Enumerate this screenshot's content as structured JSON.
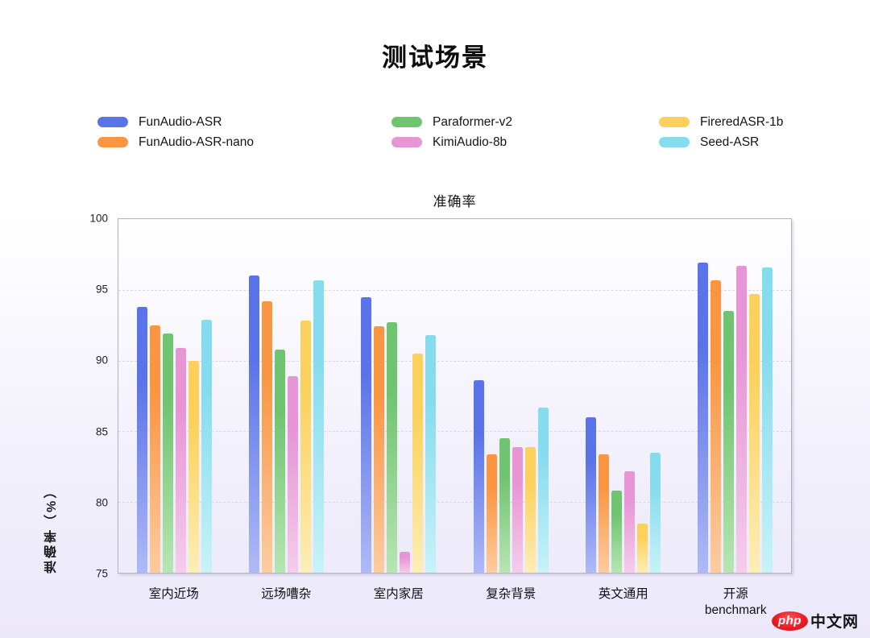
{
  "page": {
    "watermark": {
      "logo_text": "php",
      "site_text": "中文网"
    }
  },
  "chart_data": {
    "type": "bar",
    "title": "测试场景",
    "subtitle": "准确率",
    "xlabel": "",
    "ylabel": "准确率（%）",
    "ylim": [
      75,
      100
    ],
    "yticks": [
      75,
      80,
      85,
      90,
      95,
      100
    ],
    "grid": "horizontal-dashed",
    "legend_position": "top",
    "categories": [
      "室内近场",
      "远场嘈杂",
      "室内家居",
      "复杂背景",
      "英文通用",
      "开源\nbenchmark"
    ],
    "series": [
      {
        "name": "FunAudio-ASR",
        "color": "#5B73E8",
        "color_light": "#AFBAF6",
        "values": [
          93.8,
          96.0,
          94.5,
          88.6,
          86.0,
          96.9
        ]
      },
      {
        "name": "FunAudio-ASR-nano",
        "color": "#FA9642",
        "color_light": "#FCCCA0",
        "values": [
          92.5,
          94.2,
          92.4,
          83.4,
          83.4,
          95.7
        ]
      },
      {
        "name": "Paraformer-v2",
        "color": "#6FC46F",
        "color_light": "#B7E5B3",
        "values": [
          91.9,
          90.8,
          92.7,
          84.5,
          80.8,
          93.5
        ]
      },
      {
        "name": "KimiAudio-8b",
        "color": "#E895D6",
        "color_light": "#F4CDEB",
        "values": [
          90.9,
          88.9,
          76.5,
          83.9,
          82.2,
          96.7
        ]
      },
      {
        "name": "FireredASR-1b",
        "color": "#FBD15B",
        "color_light": "#FDEEB6",
        "values": [
          90.0,
          92.8,
          90.5,
          83.9,
          78.5,
          94.7
        ]
      },
      {
        "name": "Seed-ASR",
        "color": "#85DCEE",
        "color_light": "#C8F2F8",
        "values": [
          92.9,
          95.7,
          91.8,
          86.7,
          83.5,
          96.6
        ]
      }
    ]
  }
}
